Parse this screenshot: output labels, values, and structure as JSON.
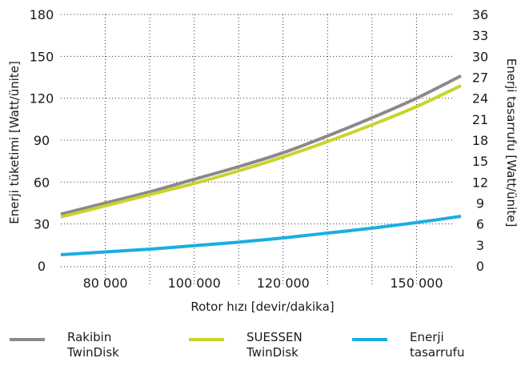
{
  "chart_data": {
    "type": "line",
    "xlabel": "Rotor hızı [devir/dakika]",
    "ylabel_left": "Enerji tüketimi [Watt/ünite]",
    "ylabel_right": "Enerji tasarrufu [Watt/ünite]",
    "x_ticks": [
      80000,
      100000,
      120000,
      150000
    ],
    "x_tick_labels": [
      "80 000",
      "100 000",
      "120 000",
      "150 000"
    ],
    "xlim": [
      70000,
      160000
    ],
    "ylim_left": [
      0,
      180
    ],
    "ylim_right": [
      0,
      36
    ],
    "y_ticks_left": [
      "0",
      "30",
      "60",
      "90",
      "120",
      "150",
      "180"
    ],
    "y_ticks_right": [
      "0",
      "3",
      "6",
      "9",
      "12",
      "15",
      "18",
      "21",
      "24",
      "27",
      "30",
      "33",
      "36"
    ],
    "grid": true,
    "series": [
      {
        "name": "Rakibin TwinDisk",
        "axis": "left",
        "color": "#8a8a8a",
        "x": [
          70000,
          80000,
          90000,
          100000,
          110000,
          120000,
          130000,
          140000,
          150000,
          160000
        ],
        "y": [
          37,
          45,
          53,
          62,
          71,
          81,
          93,
          106,
          120,
          136
        ]
      },
      {
        "name": "SUESSEN TwinDisk",
        "axis": "left",
        "color": "#c8d42a",
        "x": [
          70000,
          80000,
          90000,
          100000,
          110000,
          120000,
          130000,
          140000,
          150000,
          160000
        ],
        "y": [
          35,
          43,
          51,
          59,
          68,
          78,
          89,
          101,
          114,
          129
        ]
      },
      {
        "name": "Enerji tasarrufu",
        "axis": "right",
        "color": "#1aaee0",
        "x": [
          70000,
          80000,
          90000,
          100000,
          110000,
          120000,
          130000,
          140000,
          150000,
          160000
        ],
        "y": [
          1.6,
          2.0,
          2.4,
          2.9,
          3.4,
          4.0,
          4.7,
          5.4,
          6.2,
          7.1
        ]
      }
    ]
  },
  "legend": [
    {
      "line1": "Rakibin",
      "line2": "TwinDisk",
      "color": "#8a8a8a"
    },
    {
      "line1": "SUESSEN",
      "line2": "TwinDisk",
      "color": "#c8d42a"
    },
    {
      "line1": "Enerji",
      "line2": "tasarrufu",
      "color": "#1aaee0"
    }
  ]
}
